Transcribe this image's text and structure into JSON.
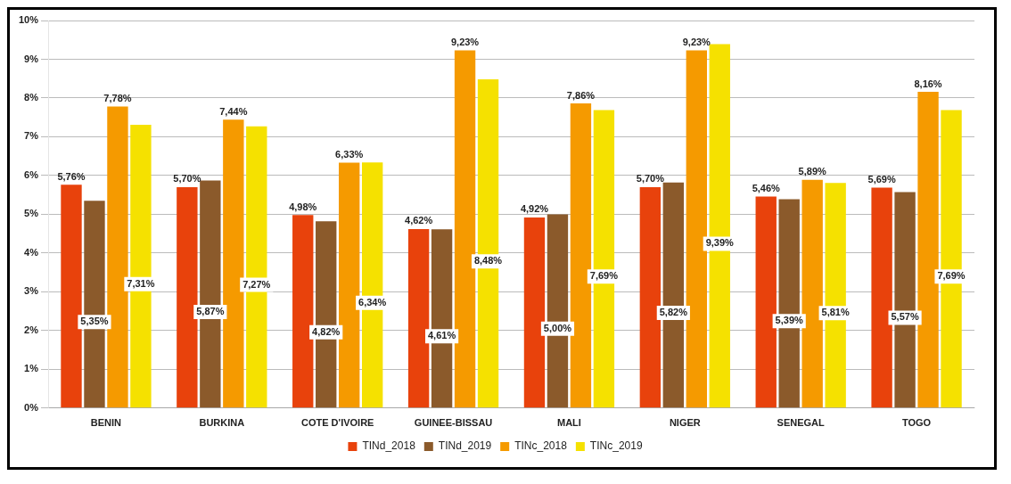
{
  "chart_data": {
    "type": "bar",
    "categories": [
      "BENIN",
      "BURKINA",
      "COTE D'IVOIRE",
      "GUINEE-BISSAU",
      "MALI",
      "NIGER",
      "SENEGAL",
      "TOGO"
    ],
    "series": [
      {
        "name": "TINd_2018",
        "color": "#e8420c",
        "values": [
          5.76,
          5.7,
          4.98,
          4.62,
          4.92,
          5.7,
          5.46,
          5.69
        ],
        "value_labels": [
          "5,76%",
          "5,70%",
          "4,98%",
          "4,62%",
          "4,92%",
          "5,70%",
          "5,46%",
          "5,69%"
        ]
      },
      {
        "name": "TINd_2019",
        "color": "#8b5a2b",
        "values": [
          5.35,
          5.87,
          4.82,
          4.61,
          5.0,
          5.82,
          5.39,
          5.57
        ],
        "value_labels": [
          "5,35%",
          "5,87%",
          "4,82%",
          "4,61%",
          "5,00%",
          "5,82%",
          "5,39%",
          "5,57%"
        ]
      },
      {
        "name": "TINc_2018",
        "color": "#f59a00",
        "values": [
          7.78,
          7.44,
          6.33,
          9.23,
          7.86,
          9.23,
          5.89,
          8.16
        ],
        "value_labels": [
          "7,78%",
          "7,44%",
          "6,33%",
          "9,23%",
          "7,86%",
          "9,23%",
          "5,89%",
          "8,16%"
        ]
      },
      {
        "name": "TINc_2019",
        "color": "#f5e100",
        "values": [
          7.31,
          7.27,
          6.34,
          8.48,
          7.69,
          9.39,
          5.81,
          7.69
        ],
        "value_labels": [
          "7,31%",
          "7,27%",
          "6,34%",
          "8,48%",
          "7,69%",
          "9,39%",
          "5,81%",
          "7,69%"
        ]
      }
    ],
    "ylim": [
      0,
      10
    ],
    "yticks": [
      {
        "value": 0,
        "label": "0%"
      },
      {
        "value": 1,
        "label": "1%"
      },
      {
        "value": 2,
        "label": "2%"
      },
      {
        "value": 3,
        "label": "3%"
      },
      {
        "value": 4,
        "label": "4%"
      },
      {
        "value": 5,
        "label": "5%"
      },
      {
        "value": 6,
        "label": "6%"
      },
      {
        "value": 7,
        "label": "7%"
      },
      {
        "value": 8,
        "label": "8%"
      },
      {
        "value": 9,
        "label": "9%"
      },
      {
        "value": 10,
        "label": "10%"
      }
    ],
    "grid": "y",
    "legend": "bottom"
  }
}
